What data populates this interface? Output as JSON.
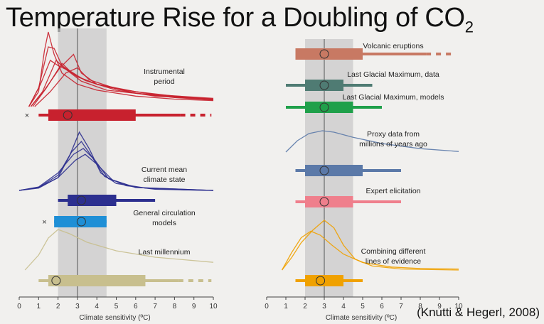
{
  "title": {
    "main": "Temperature Rise for a Doubling of CO",
    "sub": "2"
  },
  "citation": "(Knutti & Hegerl, 2008)",
  "chart_data": [
    {
      "type": "range-and-density",
      "panel": "left",
      "xlabel": "Climate sensitivity (ºC)",
      "xlim": [
        0,
        10
      ],
      "xticks": [
        0,
        1,
        2,
        3,
        4,
        5,
        6,
        7,
        8,
        9,
        10
      ],
      "likely_range_shading": [
        2,
        4.5
      ],
      "best_estimate_line": 3,
      "groups": [
        {
          "label": [
            "Instrumental",
            "period"
          ],
          "color": "#c8212e",
          "curves": [
            [
              [
                0.5,
                0
              ],
              [
                1,
                0.2
              ],
              [
                1.3,
                0.75
              ],
              [
                1.5,
                1.0
              ],
              [
                1.8,
                0.7
              ],
              [
                2.2,
                0.45
              ],
              [
                3,
                0.3
              ],
              [
                4,
                0.22
              ],
              [
                6,
                0.14
              ],
              [
                8,
                0.1
              ],
              [
                10,
                0.08
              ]
            ],
            [
              [
                0.5,
                0
              ],
              [
                1,
                0.25
              ],
              [
                1.5,
                0.8
              ],
              [
                1.8,
                0.78
              ],
              [
                2.2,
                0.55
              ],
              [
                3,
                0.4
              ],
              [
                4,
                0.3
              ],
              [
                6,
                0.18
              ],
              [
                8,
                0.12
              ],
              [
                10,
                0.09
              ]
            ],
            [
              [
                0.6,
                0
              ],
              [
                1.2,
                0.2
              ],
              [
                1.9,
                0.62
              ],
              [
                2.3,
                0.52
              ],
              [
                3,
                0.4
              ],
              [
                4,
                0.3
              ],
              [
                6,
                0.2
              ],
              [
                8,
                0.14
              ],
              [
                10,
                0.1
              ]
            ],
            [
              [
                0.7,
                0
              ],
              [
                1.4,
                0.25
              ],
              [
                2.2,
                0.58
              ],
              [
                2.6,
                0.48
              ],
              [
                3.4,
                0.35
              ],
              [
                5,
                0.22
              ],
              [
                7,
                0.14
              ],
              [
                10,
                0.1
              ]
            ],
            [
              [
                0.5,
                0
              ],
              [
                1.1,
                0.3
              ],
              [
                1.6,
                0.62
              ],
              [
                2.0,
                0.55
              ],
              [
                2.4,
                0.5
              ],
              [
                3.2,
                0.34
              ],
              [
                4.5,
                0.22
              ],
              [
                7,
                0.15
              ],
              [
                10,
                0.09
              ]
            ],
            [
              [
                0.6,
                0
              ],
              [
                1.3,
                0.22
              ],
              [
                2.1,
                0.52
              ],
              [
                2.8,
                0.7
              ],
              [
                3.2,
                0.45
              ],
              [
                4,
                0.3
              ],
              [
                6,
                0.18
              ],
              [
                8,
                0.13
              ],
              [
                10,
                0.1
              ]
            ],
            [
              [
                0.8,
                0
              ],
              [
                1.6,
                0.2
              ],
              [
                2.4,
                0.45
              ],
              [
                3,
                0.52
              ],
              [
                3.6,
                0.36
              ],
              [
                5,
                0.24
              ],
              [
                7,
                0.16
              ],
              [
                10,
                0.11
              ]
            ]
          ],
          "ranges": [
            {
              "outer": [
                1,
                8.3
              ],
              "inner": [
                1.5,
                6
              ],
              "dashed": [
                8.3,
                9.9
              ],
              "best": 2.5,
              "outlier": 0.4
            }
          ]
        },
        {
          "label": [
            "Current mean",
            "climate state"
          ],
          "color": "#2c2f8f",
          "curves": [
            [
              [
                0,
                0
              ],
              [
                1,
                0.04
              ],
              [
                2,
                0.22
              ],
              [
                2.6,
                0.6
              ],
              [
                3.1,
                1.0
              ],
              [
                3.6,
                0.72
              ],
              [
                4.2,
                0.3
              ],
              [
                5,
                0.12
              ],
              [
                6.5,
                0.04
              ],
              [
                8.5,
                0.01
              ],
              [
                10,
                0
              ]
            ],
            [
              [
                0,
                0
              ],
              [
                1,
                0.05
              ],
              [
                2,
                0.26
              ],
              [
                2.7,
                0.66
              ],
              [
                3.2,
                0.84
              ],
              [
                3.7,
                0.6
              ],
              [
                4.4,
                0.24
              ],
              [
                5.5,
                0.08
              ],
              [
                7,
                0.02
              ],
              [
                10,
                0
              ]
            ],
            [
              [
                0,
                0
              ],
              [
                1,
                0.06
              ],
              [
                2,
                0.3
              ],
              [
                2.8,
                0.62
              ],
              [
                3.3,
                0.72
              ],
              [
                3.9,
                0.52
              ],
              [
                4.6,
                0.2
              ],
              [
                6,
                0.05
              ],
              [
                10,
                0
              ]
            ],
            [
              [
                0,
                0
              ],
              [
                1,
                0.05
              ],
              [
                2,
                0.22
              ],
              [
                2.9,
                0.52
              ],
              [
                3.4,
                0.62
              ],
              [
                4,
                0.45
              ],
              [
                4.8,
                0.18
              ],
              [
                6,
                0.05
              ],
              [
                10,
                0
              ]
            ]
          ],
          "ranges": [
            {
              "outer": [
                2,
                7
              ],
              "inner": [
                2.5,
                5
              ],
              "best": 3.2
            }
          ]
        },
        {
          "label": [
            "General circulation",
            "models"
          ],
          "color": "#1f8fd6",
          "curves": [],
          "ranges": [
            {
              "outer": [
                1.8,
                4.5
              ],
              "inner": [
                1.8,
                4.5
              ],
              "best": 3.2,
              "outlier": 1.3
            }
          ]
        },
        {
          "label": [
            "Last millennium"
          ],
          "color": "#c8bf8e",
          "curves": [
            [
              [
                0.3,
                0
              ],
              [
                1,
                0.35
              ],
              [
                1.5,
                0.75
              ],
              [
                2,
                0.95
              ],
              [
                2.6,
                0.85
              ],
              [
                3.5,
                0.65
              ],
              [
                5,
                0.45
              ],
              [
                7,
                0.3
              ],
              [
                10,
                0.18
              ]
            ]
          ],
          "ranges": [
            {
              "outer": [
                1,
                8.2
              ],
              "inner": [
                1.5,
                6.5
              ],
              "dashed": [
                8.2,
                9.9
              ],
              "best": 1.9
            }
          ]
        }
      ]
    },
    {
      "type": "range-and-density",
      "panel": "right",
      "xlabel": "Climate sensitivity (ºC)",
      "xlim": [
        0,
        10
      ],
      "xticks": [
        0,
        1,
        2,
        3,
        4,
        5,
        6,
        7,
        8,
        9,
        10
      ],
      "likely_range_shading": [
        2,
        4.5
      ],
      "best_estimate_line": 3,
      "groups": [
        {
          "label": [
            "Volcanic eruptions"
          ],
          "color": "#c87963",
          "curves": [],
          "ranges": [
            {
              "outer": [
                1.5,
                8.3
              ],
              "inner": [
                1.5,
                5
              ],
              "dashed": [
                8.3,
                9.8
              ],
              "best": 3
            }
          ]
        },
        {
          "label": [
            "Last Glacial Maximum, data"
          ],
          "color": "#4f7b73",
          "curves": [],
          "ranges": [
            {
              "outer": [
                1,
                5.5
              ],
              "inner": [
                2,
                4
              ],
              "best": 3
            }
          ]
        },
        {
          "label": [
            "Last Glacial Maximum, models"
          ],
          "color": "#1fa04a",
          "curves": [],
          "ranges": [
            {
              "outer": [
                1,
                6
              ],
              "inner": [
                2,
                4.5
              ],
              "best": 3
            }
          ]
        },
        {
          "label": [
            "Proxy data from",
            "millions of years ago"
          ],
          "color": "#5b79a8",
          "curves": [
            [
              [
                1,
                0.2
              ],
              [
                1.6,
                0.6
              ],
              [
                2.2,
                0.85
              ],
              [
                2.9,
                0.95
              ],
              [
                3.5,
                0.9
              ],
              [
                4.5,
                0.72
              ],
              [
                6,
                0.5
              ],
              [
                8,
                0.32
              ],
              [
                10,
                0.22
              ]
            ]
          ],
          "ranges": [
            {
              "outer": [
                1.5,
                7
              ],
              "inner": [
                2,
                5
              ],
              "best": 3
            }
          ]
        },
        {
          "label": [
            "Expert elicitation"
          ],
          "color": "#ef7f8c",
          "curves": [],
          "ranges": [
            {
              "outer": [
                1.5,
                7
              ],
              "inner": [
                2,
                4.5
              ],
              "best": 3
            }
          ]
        },
        {
          "label": [
            "Combining different",
            "lines of evidence"
          ],
          "color": "#f0a100",
          "curves": [
            [
              [
                0.8,
                0
              ],
              [
                1.3,
                0.25
              ],
              [
                1.8,
                0.55
              ],
              [
                2.4,
                0.8
              ],
              [
                3.0,
                1.0
              ],
              [
                3.5,
                0.85
              ],
              [
                4,
                0.5
              ],
              [
                4.6,
                0.22
              ],
              [
                5.5,
                0.08
              ],
              [
                7,
                0.02
              ],
              [
                10,
                0
              ]
            ],
            [
              [
                0.8,
                0
              ],
              [
                1.3,
                0.35
              ],
              [
                1.8,
                0.65
              ],
              [
                2.3,
                0.78
              ],
              [
                2.8,
                0.7
              ],
              [
                3.4,
                0.5
              ],
              [
                4,
                0.32
              ],
              [
                5,
                0.15
              ],
              [
                6.5,
                0.06
              ],
              [
                8,
                0.03
              ],
              [
                10,
                0.02
              ]
            ]
          ],
          "ranges": [
            {
              "outer": [
                1.5,
                5
              ],
              "inner": [
                2,
                4
              ],
              "best": 2.8
            }
          ]
        }
      ]
    }
  ]
}
